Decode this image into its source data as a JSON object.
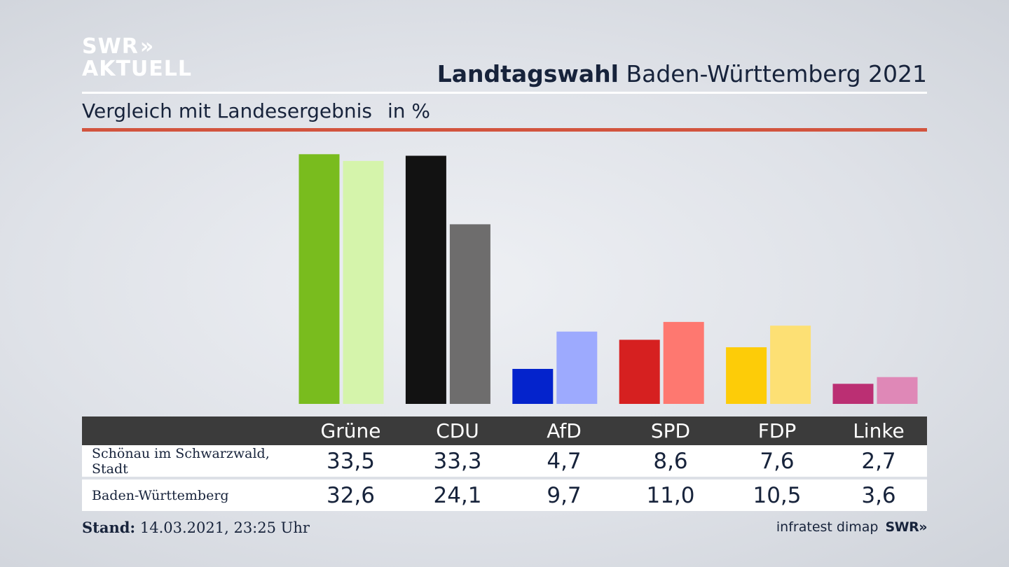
{
  "logo": {
    "line1": "SWR",
    "chevrons": "»",
    "line2": "AKTUELL"
  },
  "headline": {
    "bold": "Landtagswahl",
    "rest": "Baden-Württemberg 2021"
  },
  "subtitle": {
    "text": "Vergleich mit Landesergebnis",
    "unit": "in %"
  },
  "chart_data": {
    "type": "bar",
    "categories": [
      "Grüne",
      "CDU",
      "AfD",
      "SPD",
      "FDP",
      "Linke"
    ],
    "series": [
      {
        "name": "Schönau im Schwarzwald, Stadt",
        "values": [
          33.5,
          33.3,
          4.7,
          8.6,
          7.6,
          2.7
        ]
      },
      {
        "name": "Baden-Württemberg",
        "values": [
          32.6,
          24.1,
          9.7,
          11.0,
          10.5,
          3.6
        ]
      }
    ],
    "colors": {
      "local": [
        "#79bc1e",
        "#121212",
        "#0423cc",
        "#d62020",
        "#fdcc08",
        "#bb2f73"
      ],
      "state": [
        "#d5f4ab",
        "#6e6d6d",
        "#9daafe",
        "#fe7870",
        "#fde074",
        "#df88b7"
      ]
    },
    "ylim": [
      0,
      34
    ]
  },
  "table": {
    "headers": [
      "Grüne",
      "CDU",
      "AfD",
      "SPD",
      "FDP",
      "Linke"
    ],
    "rows": [
      {
        "label": "Schönau im Schwarzwald, Stadt",
        "values": [
          "33,5",
          "33,3",
          "4,7",
          "8,6",
          "7,6",
          "2,7"
        ]
      },
      {
        "label": "Baden-Württemberg",
        "values": [
          "32,6",
          "24,1",
          "9,7",
          "11,0",
          "10,5",
          "3,6"
        ]
      }
    ]
  },
  "footer": {
    "stand_label": "Stand:",
    "stand_value": "14.03.2021, 23:25 Uhr",
    "source": "infratest dimap",
    "brand": "SWR»"
  }
}
